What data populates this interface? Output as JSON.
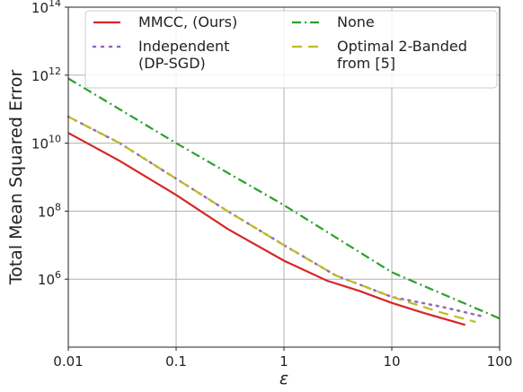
{
  "chart_data": {
    "type": "line",
    "title": "",
    "xlabel": "ε",
    "ylabel": "Total Mean Squared Error",
    "xscale": "log",
    "yscale": "log",
    "xlim": [
      0.01,
      100
    ],
    "ylim": [
      10000,
      100000000000000
    ],
    "grid": true,
    "legend_position": "top",
    "x_ticks": [
      {
        "value": 0.01,
        "label": "0.01"
      },
      {
        "value": 0.1,
        "label": "0.1"
      },
      {
        "value": 1,
        "label": "1"
      },
      {
        "value": 10,
        "label": "10"
      },
      {
        "value": 100,
        "label": "100"
      }
    ],
    "y_ticks": [
      {
        "value": 1000000,
        "base": "10",
        "exp": "6"
      },
      {
        "value": 100000000,
        "base": "10",
        "exp": "8"
      },
      {
        "value": 10000000000,
        "base": "10",
        "exp": "10"
      },
      {
        "value": 1000000000000,
        "base": "10",
        "exp": "12"
      },
      {
        "value": 100000000000000,
        "base": "10",
        "exp": "14"
      }
    ],
    "series": [
      {
        "name": "MMCC, (Ours)",
        "color": "#d62728",
        "style": "solid",
        "points": [
          [
            0.01,
            20000000000
          ],
          [
            0.03,
            3000000000
          ],
          [
            0.1,
            300000000
          ],
          [
            0.3,
            30000000
          ],
          [
            1,
            3500000
          ],
          [
            2.5,
            900000
          ],
          [
            5,
            450000
          ],
          [
            10,
            200000
          ],
          [
            20,
            100000
          ],
          [
            48,
            45000
          ]
        ]
      },
      {
        "name": "Independent\n(DP-SGD)",
        "color": "#9467bd",
        "style": "dotted",
        "points": [
          [
            0.01,
            60000000000
          ],
          [
            0.03,
            10000000000
          ],
          [
            0.1,
            900000000
          ],
          [
            0.3,
            100000000
          ],
          [
            1,
            10000000
          ],
          [
            3,
            1300000
          ],
          [
            10,
            300000
          ],
          [
            30,
            150000
          ],
          [
            70,
            80000
          ]
        ]
      },
      {
        "name": "None",
        "color": "#2ca02c",
        "style": "dashdot",
        "points": [
          [
            0.01,
            800000000000
          ],
          [
            0.1,
            10000000000
          ],
          [
            1,
            150000000
          ],
          [
            10,
            1600000
          ],
          [
            100,
            70000
          ]
        ]
      },
      {
        "name": "Optimal 2-Banded\nfrom [5]",
        "color": "#bcbd22",
        "style": "dashed",
        "points": [
          [
            0.01,
            60000000000
          ],
          [
            0.03,
            10000000000
          ],
          [
            0.1,
            900000000
          ],
          [
            0.3,
            100000000
          ],
          [
            1,
            10000000
          ],
          [
            3,
            1300000
          ],
          [
            10,
            300000
          ],
          [
            30,
            100000
          ],
          [
            60,
            55000
          ]
        ]
      }
    ]
  }
}
